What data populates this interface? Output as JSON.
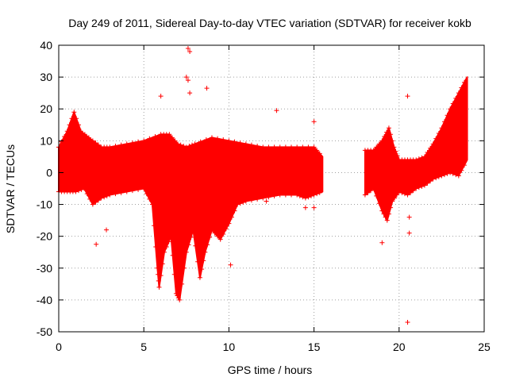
{
  "chart_data": {
    "type": "scatter",
    "title": "Day 249 of 2011, Sidereal Day-to-day VTEC variation (SDTVAR) for receiver kokb",
    "xlabel": "GPS time / hours",
    "ylabel": "SDTVAR / TECUs",
    "xlim": [
      0,
      25
    ],
    "ylim": [
      -50,
      40
    ],
    "xticks": [
      "0",
      "5",
      "10",
      "15",
      "20",
      "25"
    ],
    "yticks": [
      "40",
      "30",
      "20",
      "10",
      "0",
      "-10",
      "-20",
      "-30",
      "-40",
      "-50"
    ],
    "grid": true,
    "marker": "+",
    "color": "#ff0000",
    "envelope_segments": [
      {
        "name": "segment-0-to-15.5h",
        "upper": [
          [
            0,
            8
          ],
          [
            0.5,
            13
          ],
          [
            0.9,
            19
          ],
          [
            1.3,
            13
          ],
          [
            2.0,
            10
          ],
          [
            2.5,
            8
          ],
          [
            3.0,
            8
          ],
          [
            4.0,
            9
          ],
          [
            5.0,
            10
          ],
          [
            6.0,
            12
          ],
          [
            6.5,
            12
          ],
          [
            7.0,
            9
          ],
          [
            7.5,
            8
          ],
          [
            8.0,
            9
          ],
          [
            9.0,
            11
          ],
          [
            10.0,
            10
          ],
          [
            11.0,
            9
          ],
          [
            12.0,
            8
          ],
          [
            13.0,
            8
          ],
          [
            14.0,
            8
          ],
          [
            15.0,
            8
          ],
          [
            15.5,
            5
          ]
        ],
        "lower": [
          [
            0,
            -6
          ],
          [
            0.5,
            -6
          ],
          [
            1.0,
            -6
          ],
          [
            1.5,
            -5
          ],
          [
            2.0,
            -10
          ],
          [
            2.5,
            -8
          ],
          [
            3.0,
            -7
          ],
          [
            4.0,
            -6
          ],
          [
            5.0,
            -5
          ],
          [
            5.5,
            -10
          ],
          [
            5.8,
            -30
          ],
          [
            5.9,
            -36
          ],
          [
            6.2,
            -25
          ],
          [
            6.6,
            -20
          ],
          [
            6.9,
            -38
          ],
          [
            7.1,
            -40
          ],
          [
            7.5,
            -25
          ],
          [
            7.9,
            -18
          ],
          [
            8.3,
            -33
          ],
          [
            8.6,
            -25
          ],
          [
            9.0,
            -18
          ],
          [
            9.5,
            -21
          ],
          [
            10.0,
            -16
          ],
          [
            10.5,
            -10
          ],
          [
            11.0,
            -9
          ],
          [
            12.0,
            -8
          ],
          [
            13.0,
            -7
          ],
          [
            14.0,
            -7
          ],
          [
            14.5,
            -8
          ],
          [
            15.0,
            -7
          ],
          [
            15.5,
            -6
          ]
        ]
      },
      {
        "name": "segment-18-to-24h",
        "upper": [
          [
            18,
            7
          ],
          [
            18.5,
            7
          ],
          [
            19.0,
            10
          ],
          [
            19.4,
            14
          ],
          [
            19.7,
            8
          ],
          [
            20.0,
            4
          ],
          [
            20.5,
            4
          ],
          [
            21.0,
            4
          ],
          [
            21.5,
            5
          ],
          [
            22.0,
            9
          ],
          [
            22.5,
            14
          ],
          [
            23.0,
            20
          ],
          [
            23.5,
            25
          ],
          [
            24.0,
            30
          ]
        ],
        "lower": [
          [
            18,
            -7
          ],
          [
            18.5,
            -5
          ],
          [
            19.0,
            -12
          ],
          [
            19.3,
            -15
          ],
          [
            19.6,
            -9
          ],
          [
            20.0,
            -6
          ],
          [
            20.5,
            -7
          ],
          [
            21.0,
            -5
          ],
          [
            21.5,
            -4
          ],
          [
            22.0,
            -2
          ],
          [
            22.5,
            -1
          ],
          [
            23.0,
            0
          ],
          [
            23.5,
            -1
          ],
          [
            24.0,
            4
          ]
        ]
      }
    ],
    "outliers": [
      [
        7.6,
        39
      ],
      [
        7.7,
        38
      ],
      [
        7.5,
        30
      ],
      [
        7.6,
        29
      ],
      [
        6.0,
        24
      ],
      [
        7.7,
        25
      ],
      [
        8.7,
        26.5
      ],
      [
        12.8,
        19.5
      ],
      [
        15.0,
        16
      ],
      [
        20.5,
        24
      ],
      [
        2.2,
        -22.5
      ],
      [
        2.8,
        -18
      ],
      [
        10.1,
        -29
      ],
      [
        19.0,
        -22
      ],
      [
        20.5,
        -47
      ],
      [
        20.6,
        -19
      ],
      [
        20.6,
        -14
      ],
      [
        15.0,
        -11
      ],
      [
        14.5,
        -11
      ],
      [
        12.2,
        -9
      ],
      [
        11.5,
        -7
      ]
    ]
  }
}
